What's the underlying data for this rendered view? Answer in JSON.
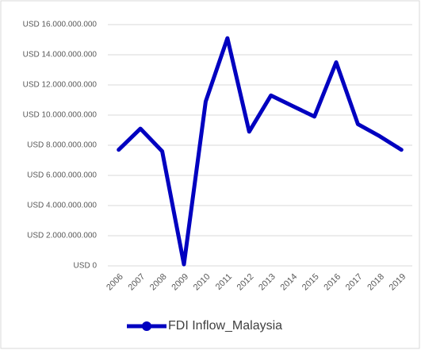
{
  "chart_data": {
    "type": "line",
    "categories": [
      "2006",
      "2007",
      "2008",
      "2009",
      "2010",
      "2011",
      "2012",
      "2013",
      "2014",
      "2015",
      "2016",
      "2017",
      "2018",
      "2019"
    ],
    "series": [
      {
        "name": "FDI Inflow_Malaysia",
        "color": "#0000c0",
        "values": [
          7700000000,
          9100000000,
          7600000000,
          100000000,
          10900000000,
          15100000000,
          8900000000,
          11300000000,
          10600000000,
          9900000000,
          13500000000,
          9400000000,
          8600000000,
          7700000000
        ]
      }
    ],
    "ylim": [
      0,
      16000000000
    ],
    "yticks": [
      {
        "value": 0,
        "label": "USD 0"
      },
      {
        "value": 2000000000,
        "label": "USD 2.000.000.000"
      },
      {
        "value": 4000000000,
        "label": "USD 4.000.000.000"
      },
      {
        "value": 6000000000,
        "label": "USD 6.000.000.000"
      },
      {
        "value": 8000000000,
        "label": "USD 8.000.000.000"
      },
      {
        "value": 10000000000,
        "label": "USD 10.000.000.000"
      },
      {
        "value": 12000000000,
        "label": "USD 12.000.000.000"
      },
      {
        "value": 14000000000,
        "label": "USD 14.000.000.000"
      },
      {
        "value": 16000000000,
        "label": "USD 16.000.000.000"
      }
    ],
    "grid": true,
    "legend": "bottom"
  }
}
